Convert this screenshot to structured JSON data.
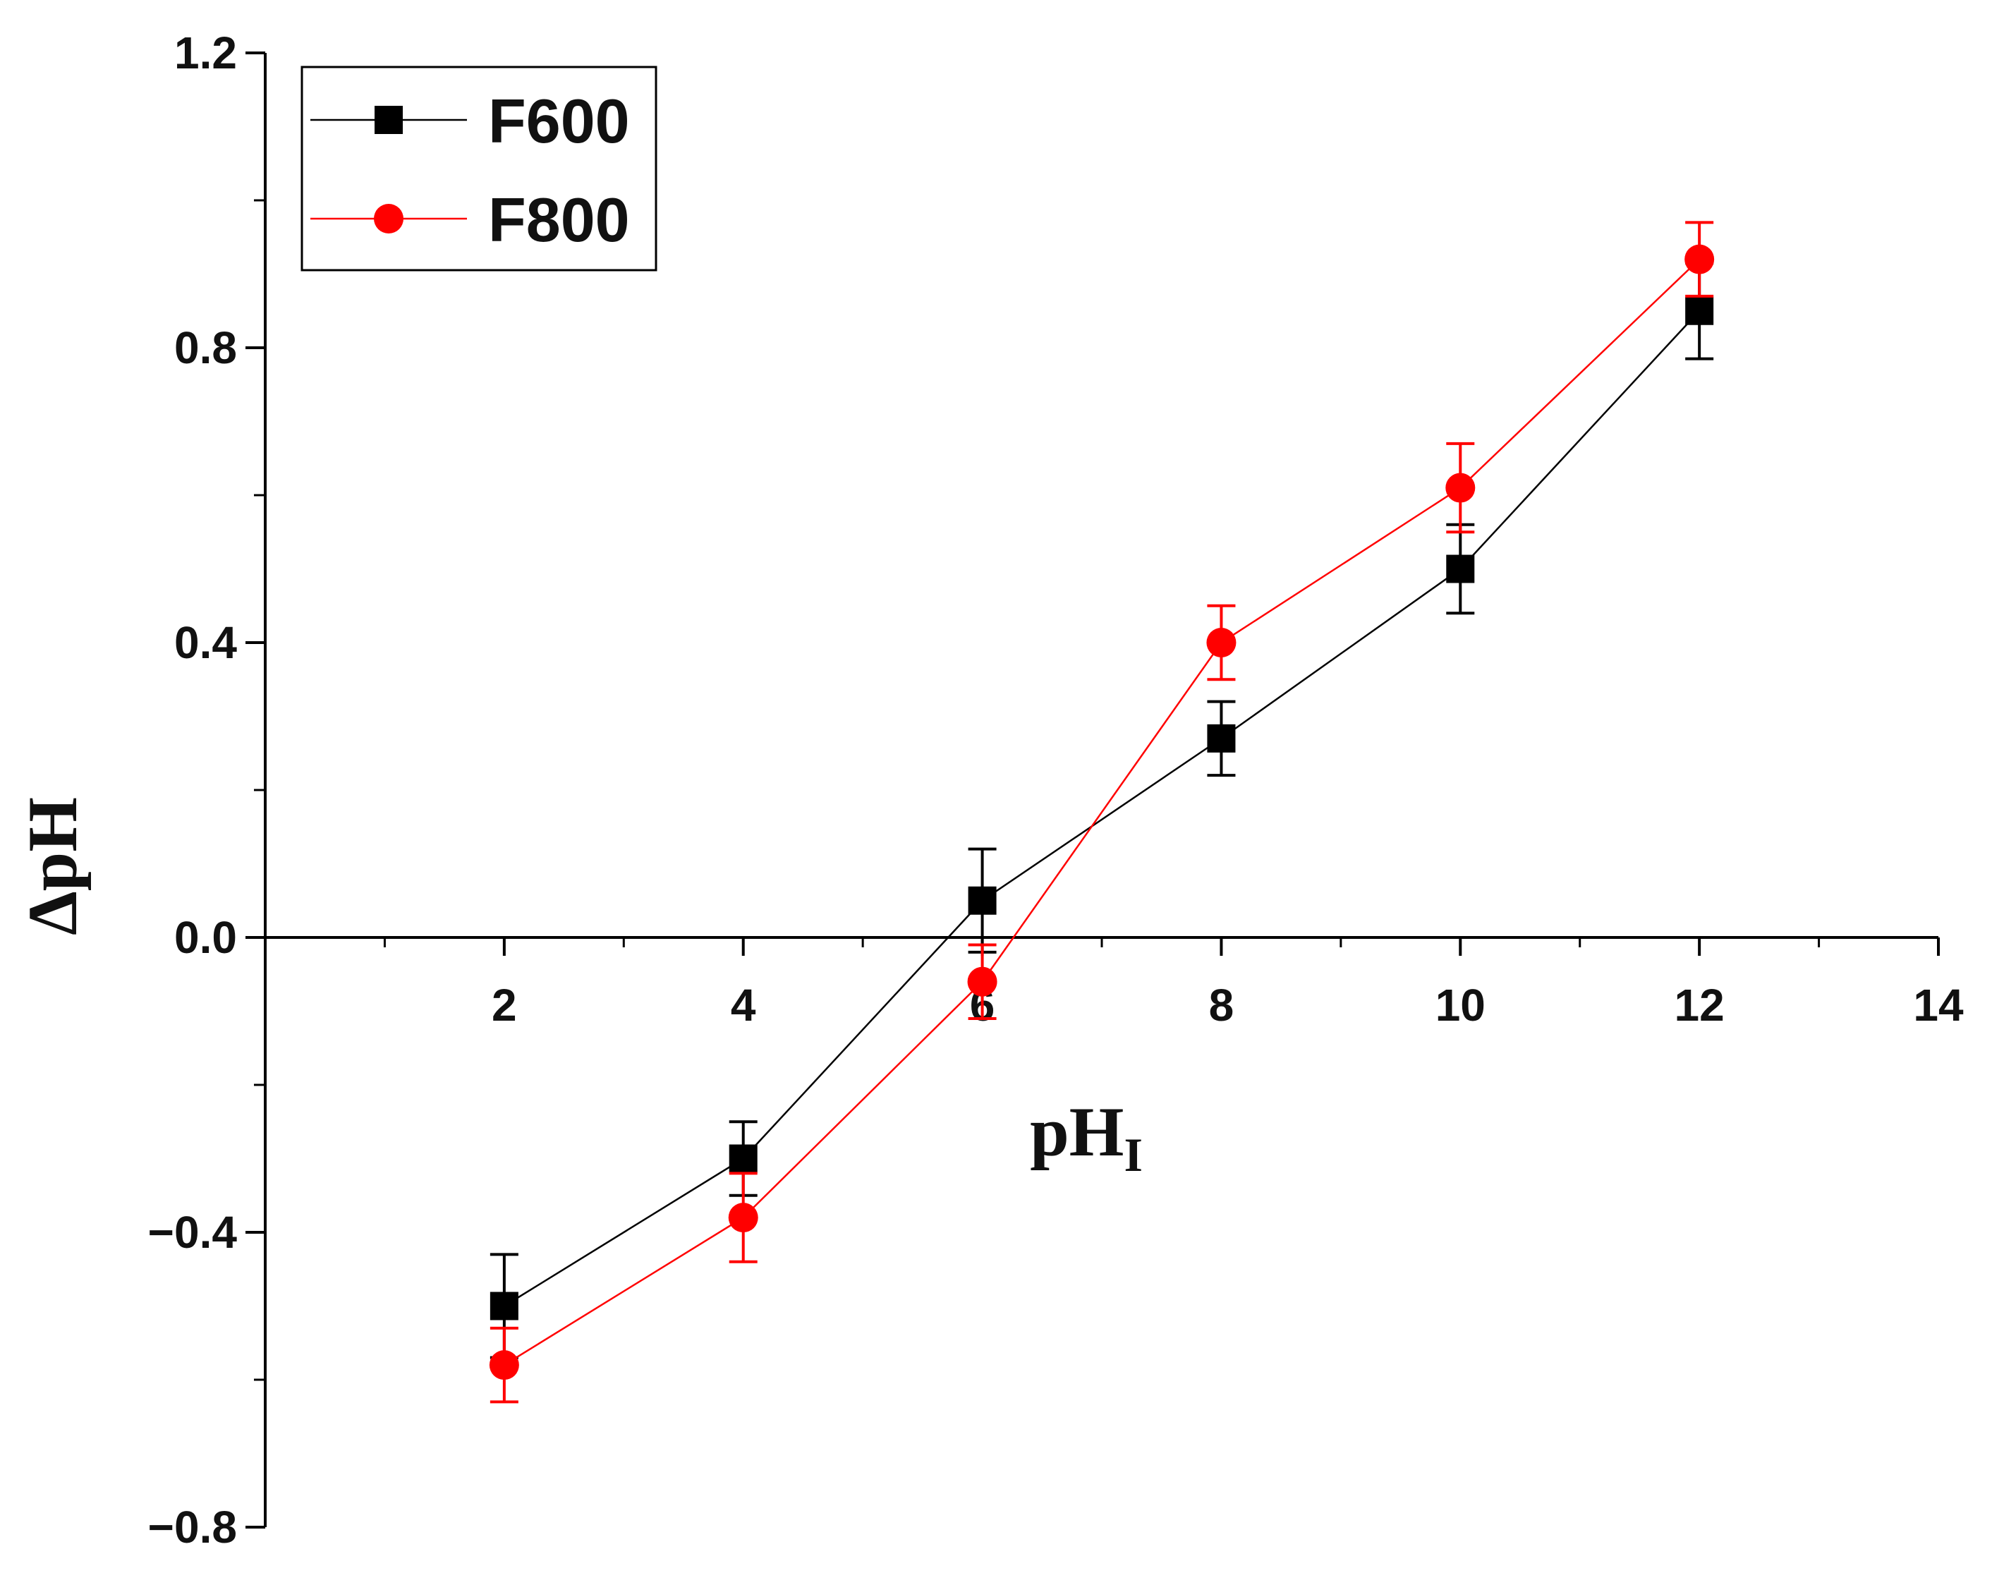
{
  "chart_data": {
    "type": "line",
    "title": "",
    "xlabel": "pH",
    "xlabel_subscript": "I",
    "ylabel": "ΔpH",
    "xlim": [
      0,
      14
    ],
    "ylim": [
      -0.8,
      1.2
    ],
    "x_ticks": [
      2,
      4,
      6,
      8,
      10,
      12,
      14
    ],
    "x_tick_labels": [
      "2",
      "4",
      "6",
      "8",
      "10",
      "12",
      "14"
    ],
    "y_ticks": [
      -0.8,
      -0.4,
      0.0,
      0.4,
      0.8,
      1.2
    ],
    "y_tick_labels": [
      "−0.8",
      "−0.4",
      "0.0",
      "0.4",
      "0.8",
      "1.2"
    ],
    "x_minor_step": 1,
    "y_minor_step": 0.2,
    "grid": false,
    "legend_position": "top-left",
    "series": [
      {
        "name": "F600",
        "color": "#000000",
        "marker": "square",
        "x": [
          2,
          4,
          6,
          8,
          10,
          12
        ],
        "y": [
          -0.5,
          -0.3,
          0.05,
          0.27,
          0.5,
          0.85
        ],
        "err": [
          0.07,
          0.05,
          0.07,
          0.05,
          0.06,
          0.065
        ]
      },
      {
        "name": "F800",
        "color": "#ff0000",
        "marker": "circle",
        "x": [
          2,
          4,
          6,
          8,
          10,
          12
        ],
        "y": [
          -0.58,
          -0.38,
          -0.06,
          0.4,
          0.61,
          0.92
        ],
        "err": [
          0.05,
          0.06,
          0.05,
          0.05,
          0.06,
          0.05
        ]
      }
    ]
  }
}
